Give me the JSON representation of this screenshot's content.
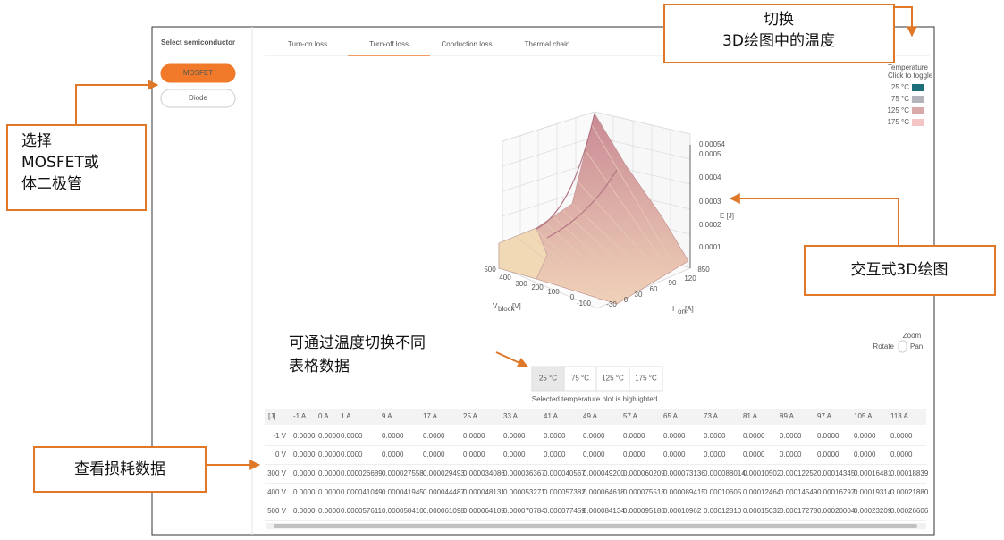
{
  "sidebar": {
    "title": "Select semiconductor",
    "options": [
      "MOSFET",
      "Diode"
    ],
    "selected": 0
  },
  "tabs": {
    "items": [
      "Turn-on loss",
      "Turn-off loss",
      "Conduction loss",
      "Thermal chain"
    ],
    "active": 1
  },
  "legend": {
    "title": "Temperature",
    "hint": "Click to toggle",
    "items": [
      {
        "label": "25 °C",
        "color": "#1d6e79"
      },
      {
        "label": "75 °C",
        "color": "#b3b3bb"
      },
      {
        "label": "125 °C",
        "color": "#d9a9a9"
      },
      {
        "label": "175 °C",
        "color": "#f3c5c5"
      }
    ]
  },
  "plot": {
    "e_ticks": [
      "0.00054",
      "0.0005",
      "0.0004",
      "0.0003",
      "0.0002",
      "0.0001"
    ],
    "e_label": "E [J]",
    "v_ticks": [
      "500",
      "400",
      "300",
      "200",
      "100",
      "0",
      "-100"
    ],
    "v_label": {
      "main": "V",
      "sub": "block",
      "unit": "[V]"
    },
    "i_ticks": [
      "850",
      "120",
      "90",
      "60",
      "30",
      "0",
      "-30"
    ],
    "i_label": {
      "main": "I",
      "sub": "on",
      "unit": "[A]"
    }
  },
  "view_controls": {
    "zoom": "Zoom",
    "rotate": "Rotate",
    "pan": "Pan"
  },
  "temperature_buttons": {
    "items": [
      "25 °C",
      "75 °C",
      "125 °C",
      "175 °C"
    ],
    "selected": 0,
    "hint": "Selected temperature plot is highlighted"
  },
  "table": {
    "header": [
      "[J]",
      "-1 A",
      "0 A",
      "1 A",
      "9 A",
      "17 A",
      "25 A",
      "33 A",
      "41 A",
      "49 A",
      "57 A",
      "65 A",
      "73 A",
      "81 A",
      "89 A",
      "97 A",
      "105 A",
      "113 A"
    ],
    "rows": [
      [
        "-1 V",
        "0.0000",
        "0.0000",
        "0.0000",
        "0.0000",
        "0.0000",
        "0.0000",
        "0.0000",
        "0.0000",
        "0.0000",
        "0.0000",
        "0.0000",
        "0.0000",
        "0.0000",
        "0.0000",
        "0.0000",
        "0.0000",
        "0.0000"
      ],
      [
        "0 V",
        "0.0000",
        "0.0000",
        "0.0000",
        "0.0000",
        "0.0000",
        "0.0000",
        "0.0000",
        "0.0000",
        "0.0000",
        "0.0000",
        "0.0000",
        "0.0000",
        "0.0000",
        "0.0000",
        "0.0000",
        "0.0000",
        "0.0000"
      ],
      [
        "300 V",
        "0.0000",
        "0.0000",
        "0.000026689",
        "0.000027558",
        "0.000029493",
        "0.000034086",
        "0.000036367",
        "0.000040567",
        "0.000049200",
        "0.000060209",
        "0.000073136",
        "0.000088014",
        "0.00010502",
        "0.00012252",
        "0.00014345",
        "0.00016481",
        "0.00018839"
      ],
      [
        "400 V",
        "0.0000",
        "0.0000",
        "0.000041049",
        "0.000041945",
        "0.000044487",
        "0.000048131",
        "0.000053271",
        "0.000057382",
        "0.000064618",
        "0.000075513",
        "0.000089415",
        "0.00010605",
        "0.00012464",
        "0.00014549",
        "0.00016797",
        "0.00019314",
        "0.00021880"
      ],
      [
        "500 V",
        "0.0000",
        "0.0000",
        "0.000057611",
        "0.000058410",
        "0.000061098",
        "0.000064109",
        "0.000070784",
        "0.000077459",
        "0.000084134",
        "0.000095186",
        "0.00010962",
        "0.00012810",
        "0.00015032",
        "0.00017278",
        "0.00020004",
        "0.00023209",
        "0.00026606"
      ]
    ]
  },
  "annotations": {
    "semiconductor": [
      "选择",
      "MOSFET或",
      "体二极管"
    ],
    "temperature_toggle": [
      "切换",
      "3D绘图中的温度"
    ],
    "plot": [
      "交互式3D绘图"
    ],
    "table_switch": [
      "可通过温度切换不同",
      "表格数据"
    ],
    "table": [
      "查看损耗数据"
    ]
  }
}
